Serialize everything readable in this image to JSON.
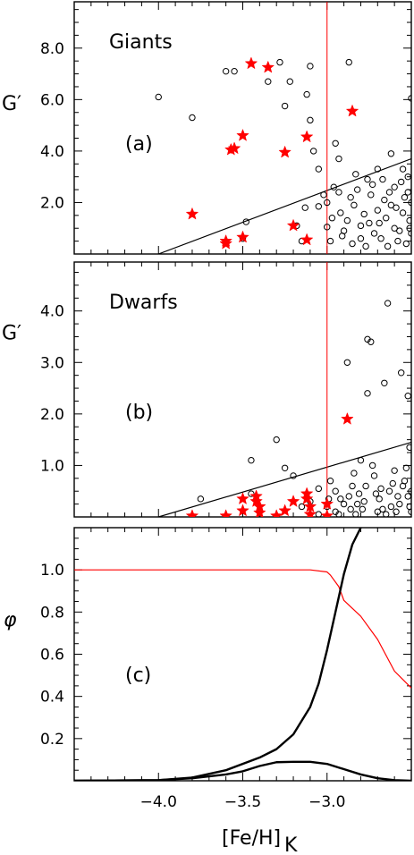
{
  "chart_data": [
    {
      "type": "scatter",
      "title": "",
      "panel_label": "(a)",
      "population": "Giants",
      "ylabel": "G′",
      "xlim": [
        -4.5,
        -2.5
      ],
      "ylim": [
        0,
        9.8
      ],
      "yticks": [
        "2.0",
        "4.0",
        "6.0",
        "8.0"
      ],
      "ytick_values": [
        2.0,
        4.0,
        6.0,
        8.0
      ],
      "vline_x": -3.0,
      "boundary_line": {
        "x": [
          -4.0,
          -2.5
        ],
        "y": [
          0.0,
          3.7
        ]
      },
      "series": [
        {
          "marker": "open-circle",
          "points": [
            [
              -4.0,
              6.1
            ],
            [
              -3.8,
              5.3
            ],
            [
              -3.6,
              7.1
            ],
            [
              -3.55,
              7.1
            ],
            [
              -3.5,
              0.6
            ],
            [
              -3.48,
              1.25
            ],
            [
              -3.35,
              6.7
            ],
            [
              -3.28,
              7.45
            ],
            [
              -3.25,
              5.75
            ],
            [
              -3.22,
              6.7
            ],
            [
              -3.18,
              1.1
            ],
            [
              -3.15,
              0.5
            ],
            [
              -3.13,
              1.8
            ],
            [
              -3.12,
              6.2
            ],
            [
              -3.1,
              7.3
            ],
            [
              -3.1,
              5.2
            ],
            [
              -3.08,
              4.0
            ],
            [
              -3.05,
              3.3
            ],
            [
              -3.05,
              1.85
            ],
            [
              -3.02,
              2.3
            ],
            [
              -3.0,
              1.05
            ],
            [
              -2.98,
              0.5
            ],
            [
              -2.96,
              2.6
            ],
            [
              -2.95,
              4.3
            ],
            [
              -2.93,
              3.7
            ],
            [
              -2.92,
              1.6
            ],
            [
              -2.9,
              0.9
            ],
            [
              -2.88,
              1.3
            ],
            [
              -2.87,
              7.45
            ],
            [
              -2.86,
              2.2
            ],
            [
              -2.85,
              0.4
            ],
            [
              -2.84,
              1.9
            ],
            [
              -2.82,
              2.5
            ],
            [
              -2.8,
              1.1
            ],
            [
              -2.8,
              0.6
            ],
            [
              -2.78,
              1.55
            ],
            [
              -2.76,
              2.9
            ],
            [
              -2.75,
              1.2
            ],
            [
              -2.74,
              2.3
            ],
            [
              -2.72,
              0.8
            ],
            [
              -2.7,
              1.7
            ],
            [
              -2.7,
              3.3
            ],
            [
              -2.68,
              0.6
            ],
            [
              -2.66,
              2.1
            ],
            [
              -2.65,
              1.4
            ],
            [
              -2.64,
              0.3
            ],
            [
              -2.62,
              1.9
            ],
            [
              -2.62,
              3.9
            ],
            [
              -2.6,
              2.6
            ],
            [
              -2.6,
              1.0
            ],
            [
              -2.58,
              0.5
            ],
            [
              -2.56,
              2.8
            ],
            [
              -2.55,
              1.6
            ],
            [
              -2.54,
              2.2
            ],
            [
              -2.53,
              0.4
            ],
            [
              -2.52,
              3.0
            ],
            [
              -2.51,
              1.3
            ],
            [
              -2.5,
              6.05
            ],
            [
              -2.5,
              2.0
            ],
            [
              -2.5,
              0.8
            ],
            [
              -3.0,
              2.0
            ],
            [
              -2.93,
              2.4
            ],
            [
              -2.97,
              1.4
            ],
            [
              -2.91,
              0.7
            ],
            [
              -2.83,
              3.1
            ],
            [
              -2.77,
              0.3
            ],
            [
              -2.73,
              2.7
            ],
            [
              -2.69,
              1.2
            ],
            [
              -2.67,
              2.9
            ],
            [
              -2.63,
              2.4
            ],
            [
              -2.59,
              1.8
            ],
            [
              -2.57,
              0.9
            ],
            [
              -2.55,
              3.3
            ],
            [
              -2.52,
              2.4
            ],
            [
              -2.51,
              1.0
            ]
          ]
        },
        {
          "marker": "red-star",
          "points": [
            [
              -3.8,
              1.55
            ],
            [
              -3.6,
              0.4
            ],
            [
              -3.6,
              0.5
            ],
            [
              -3.57,
              4.05
            ],
            [
              -3.55,
              4.1
            ],
            [
              -3.5,
              4.6
            ],
            [
              -3.5,
              0.65
            ],
            [
              -3.45,
              7.4
            ],
            [
              -3.35,
              7.25
            ],
            [
              -3.25,
              3.95
            ],
            [
              -3.2,
              1.1
            ],
            [
              -3.12,
              4.55
            ],
            [
              -3.12,
              0.55
            ],
            [
              -2.85,
              5.55
            ]
          ]
        }
      ]
    },
    {
      "type": "scatter",
      "title": "",
      "panel_label": "(b)",
      "population": "Dwarfs",
      "ylabel": "G′",
      "xlim": [
        -4.5,
        -2.5
      ],
      "ylim": [
        0,
        4.95
      ],
      "yticks": [
        "1.0",
        "2.0",
        "3.0",
        "4.0"
      ],
      "ytick_values": [
        1.0,
        2.0,
        3.0,
        4.0
      ],
      "vline_x": -3.0,
      "boundary_line": {
        "x": [
          -4.0,
          -2.5
        ],
        "y": [
          0.0,
          1.45
        ]
      },
      "series": [
        {
          "marker": "open-circle",
          "points": [
            [
              -3.75,
              0.35
            ],
            [
              -3.45,
              0.45
            ],
            [
              -3.3,
              1.5
            ],
            [
              -3.25,
              0.95
            ],
            [
              -3.2,
              0.8
            ],
            [
              -3.15,
              0.2
            ],
            [
              -3.1,
              0.3
            ],
            [
              -3.05,
              0.05
            ],
            [
              -3.0,
              0.2
            ],
            [
              -2.98,
              0.7
            ],
            [
              -2.95,
              0.1
            ],
            [
              -2.92,
              0.35
            ],
            [
              -2.88,
              3.0
            ],
            [
              -2.86,
              0.15
            ],
            [
              -2.85,
              0.6
            ],
            [
              -2.83,
              0.05
            ],
            [
              -2.81,
              0.45
            ],
            [
              -2.8,
              1.1
            ],
            [
              -2.78,
              0.3
            ],
            [
              -2.76,
              2.4
            ],
            [
              -2.76,
              3.45
            ],
            [
              -2.74,
              3.4
            ],
            [
              -2.72,
              0.8
            ],
            [
              -2.7,
              0.1
            ],
            [
              -2.68,
              0.55
            ],
            [
              -2.66,
              2.6
            ],
            [
              -2.64,
              4.15
            ],
            [
              -2.62,
              0.2
            ],
            [
              -2.6,
              0.9
            ],
            [
              -2.58,
              0.4
            ],
            [
              -2.56,
              2.8
            ],
            [
              -2.54,
              0.7
            ],
            [
              -2.52,
              2.35
            ],
            [
              -2.51,
              1.35
            ],
            [
              -2.5,
              0.1
            ],
            [
              -2.5,
              0.5
            ],
            [
              -2.95,
              0.5
            ],
            [
              -2.9,
              0.25
            ],
            [
              -2.84,
              0.85
            ],
            [
              -2.79,
              0.15
            ],
            [
              -2.73,
              1.0
            ],
            [
              -2.69,
              0.35
            ],
            [
              -2.65,
              0.05
            ],
            [
              -2.61,
              0.65
            ],
            [
              -2.57,
              0.25
            ],
            [
              -2.53,
              0.95
            ],
            [
              -2.52,
              0.4
            ],
            [
              -3.45,
              1.1
            ],
            [
              -3.05,
              0.55
            ],
            [
              -2.99,
              0.35
            ],
            [
              -2.93,
              0.05
            ],
            [
              -2.87,
              0.4
            ],
            [
              -2.82,
              0.25
            ],
            [
              -2.77,
              0.6
            ],
            [
              -2.71,
              0.45
            ],
            [
              -2.67,
              0.15
            ],
            [
              -2.63,
              0.5
            ],
            [
              -2.59,
              0.1
            ],
            [
              -2.55,
              0.6
            ],
            [
              -2.51,
              0.2
            ]
          ]
        },
        {
          "marker": "red-star",
          "points": [
            [
              -3.8,
              0.02
            ],
            [
              -3.6,
              0.02
            ],
            [
              -3.5,
              0.35
            ],
            [
              -3.5,
              0.12
            ],
            [
              -3.42,
              0.4
            ],
            [
              -3.42,
              0.3
            ],
            [
              -3.4,
              0.2
            ],
            [
              -3.4,
              0.08
            ],
            [
              -3.3,
              0.02
            ],
            [
              -3.25,
              0.12
            ],
            [
              -3.2,
              0.3
            ],
            [
              -3.12,
              0.45
            ],
            [
              -3.12,
              0.35
            ],
            [
              -3.1,
              0.2
            ],
            [
              -3.1,
              0.05
            ],
            [
              -3.0,
              0.25
            ],
            [
              -3.0,
              0.02
            ],
            [
              -2.88,
              1.9
            ]
          ]
        }
      ]
    },
    {
      "type": "line",
      "title": "",
      "panel_label": "(c)",
      "ylabel": "φ",
      "xlabel": "[Fe/H]",
      "xlabel_sub": "K",
      "xlim": [
        -4.5,
        -2.5
      ],
      "ylim": [
        0,
        1.2
      ],
      "xticks": [
        "−4.0",
        "−3.5",
        "−3.0"
      ],
      "xtick_values": [
        -4.0,
        -3.5,
        -3.0
      ],
      "yticks": [
        "0.2",
        "0.4",
        "0.6",
        "0.8",
        "1.0"
      ],
      "ytick_values": [
        0.2,
        0.4,
        0.6,
        0.8,
        1.0
      ],
      "series": [
        {
          "color": "#ff0000",
          "x": [
            -4.5,
            -3.6,
            -3.1,
            -3.0,
            -2.98,
            -2.93,
            -2.9,
            -2.8,
            -2.7,
            -2.6,
            -2.5
          ],
          "y": [
            1.0,
            1.0,
            1.0,
            0.99,
            0.975,
            0.92,
            0.855,
            0.78,
            0.67,
            0.52,
            0.44
          ]
        },
        {
          "color": "#000000",
          "x": [
            -4.5,
            -4.0,
            -3.8,
            -3.6,
            -3.4,
            -3.3,
            -3.2,
            -3.1,
            -3.05,
            -3.0,
            -2.95,
            -2.9,
            -2.85,
            -2.8
          ],
          "y": [
            0.0,
            0.003,
            0.015,
            0.05,
            0.11,
            0.15,
            0.22,
            0.35,
            0.46,
            0.62,
            0.8,
            0.98,
            1.12,
            1.2
          ]
        },
        {
          "color": "#000000",
          "x": [
            -4.5,
            -4.0,
            -3.8,
            -3.6,
            -3.5,
            -3.4,
            -3.3,
            -3.2,
            -3.1,
            -3.0,
            -2.9,
            -2.8,
            -2.7,
            -2.6,
            -2.5
          ],
          "y": [
            0.0,
            0.003,
            0.012,
            0.03,
            0.045,
            0.07,
            0.088,
            0.09,
            0.09,
            0.08,
            0.055,
            0.03,
            0.012,
            0.003,
            0.0
          ]
        }
      ]
    }
  ]
}
